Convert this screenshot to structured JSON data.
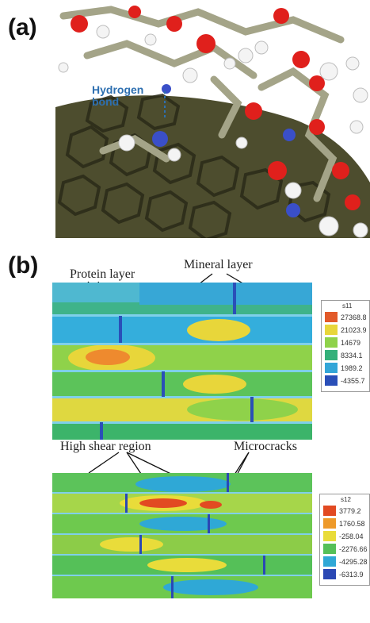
{
  "panel_a": {
    "label": "(a)",
    "annotation": "Hydrogen bond"
  },
  "panel_b": {
    "label": "(b)",
    "top_map": {
      "annotations": {
        "protein_layer": "Protein layer",
        "mineral_layer": "Mineral layer"
      },
      "legend": {
        "title": "s11",
        "values": [
          "27368.8",
          "21023.9",
          "14679",
          "8334.1",
          "1989.2",
          "-4355.7"
        ],
        "colors": [
          "#e25a2a",
          "#e8d63a",
          "#8fd24a",
          "#34b07a",
          "#33a6d8",
          "#2a4fb8"
        ]
      }
    },
    "bottom_map": {
      "annotations": {
        "high_shear": "High shear region",
        "microcracks": "Microcracks"
      },
      "legend": {
        "title": "s12",
        "values": [
          "3779.2",
          "1760.58",
          "-258.04",
          "-2276.66",
          "-4295.28",
          "-6313.9"
        ],
        "colors": [
          "#e24a22",
          "#ee9a2a",
          "#e9dc3a",
          "#55c058",
          "#2fa8d6",
          "#2a48b4"
        ]
      }
    }
  }
}
